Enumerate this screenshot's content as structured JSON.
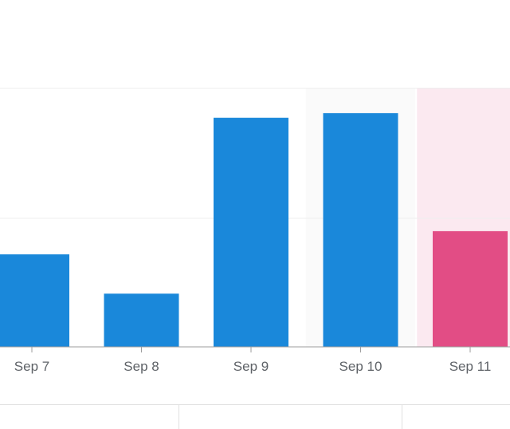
{
  "chart_data": {
    "type": "bar",
    "categories": [
      "Sep 7",
      "Sep 8",
      "Sep 9",
      "Sep 10",
      "Sep 11"
    ],
    "values": [
      40,
      23,
      99,
      101,
      50
    ],
    "ylim": [
      0,
      112
    ],
    "grid": true,
    "title": "",
    "xlabel": "",
    "ylabel": "",
    "colors": {
      "bar": "#1a88da",
      "highlight_bar": "#e24d85",
      "highlight_band": "#fbe9f0",
      "soft_band": "#fafafa",
      "grid": "#eeeeee",
      "axis": "#9e9e9e"
    },
    "highlighted_category": "Sep 11",
    "soft_band_category": "Sep 10"
  }
}
